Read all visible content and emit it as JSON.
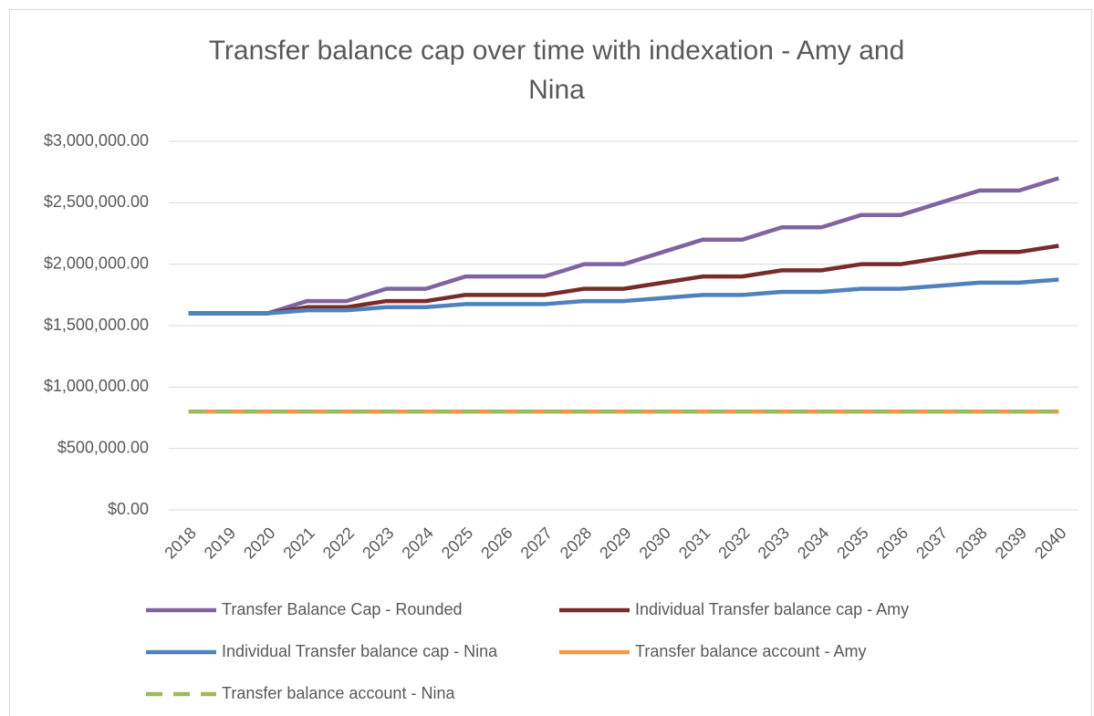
{
  "chart_data": {
    "type": "line",
    "title": "Transfer balance cap over time with indexation - Amy and Nina",
    "categories": [
      "2018",
      "2019",
      "2020",
      "2021",
      "2022",
      "2023",
      "2024",
      "2025",
      "2026",
      "2027",
      "2028",
      "2029",
      "2030",
      "2031",
      "2032",
      "2033",
      "2034",
      "2035",
      "2036",
      "2037",
      "2038",
      "2039",
      "2040"
    ],
    "series": [
      {
        "name": "Transfer Balance Cap - Rounded",
        "color": "#8064a2",
        "line_style": "solid",
        "values": [
          1600000,
          1600000,
          1600000,
          1700000,
          1700000,
          1800000,
          1800000,
          1900000,
          1900000,
          1900000,
          2000000,
          2000000,
          2100000,
          2200000,
          2200000,
          2300000,
          2300000,
          2400000,
          2400000,
          2500000,
          2600000,
          2600000,
          2700000
        ]
      },
      {
        "name": "Individual Transfer balance cap - Amy",
        "color": "#772c2a",
        "line_style": "solid",
        "values": [
          1600000,
          1600000,
          1600000,
          1650000,
          1650000,
          1700000,
          1700000,
          1750000,
          1750000,
          1750000,
          1800000,
          1800000,
          1850000,
          1900000,
          1900000,
          1950000,
          1950000,
          2000000,
          2000000,
          2050000,
          2100000,
          2100000,
          2150000
        ]
      },
      {
        "name": "Individual Transfer balance cap - Nina",
        "color": "#4f81bd",
        "line_style": "solid",
        "values": [
          1600000,
          1600000,
          1600000,
          1625000,
          1625000,
          1650000,
          1650000,
          1675000,
          1675000,
          1675000,
          1700000,
          1700000,
          1725000,
          1750000,
          1750000,
          1775000,
          1775000,
          1800000,
          1800000,
          1825000,
          1850000,
          1850000,
          1875000
        ]
      },
      {
        "name": "Transfer balance account - Amy",
        "color": "#f79646",
        "line_style": "solid",
        "values": [
          800000,
          800000,
          800000,
          800000,
          800000,
          800000,
          800000,
          800000,
          800000,
          800000,
          800000,
          800000,
          800000,
          800000,
          800000,
          800000,
          800000,
          800000,
          800000,
          800000,
          800000,
          800000,
          800000
        ]
      },
      {
        "name": "Transfer balance account - Nina",
        "color": "#9bbb59",
        "line_style": "dashed",
        "values": [
          800000,
          800000,
          800000,
          800000,
          800000,
          800000,
          800000,
          800000,
          800000,
          800000,
          800000,
          800000,
          800000,
          800000,
          800000,
          800000,
          800000,
          800000,
          800000,
          800000,
          800000,
          800000,
          800000
        ]
      }
    ],
    "ylim": [
      0,
      3000000
    ],
    "yticks": [
      {
        "value": 0,
        "label": "$0.00"
      },
      {
        "value": 500000,
        "label": "$500,000.00"
      },
      {
        "value": 1000000,
        "label": "$1,000,000.00"
      },
      {
        "value": 1500000,
        "label": "$1,500,000.00"
      },
      {
        "value": 2000000,
        "label": "$2,000,000.00"
      },
      {
        "value": 2500000,
        "label": "$2,500,000.00"
      },
      {
        "value": 3000000,
        "label": "$3,000,000.00"
      }
    ],
    "grid": true,
    "legend": "bottom"
  }
}
